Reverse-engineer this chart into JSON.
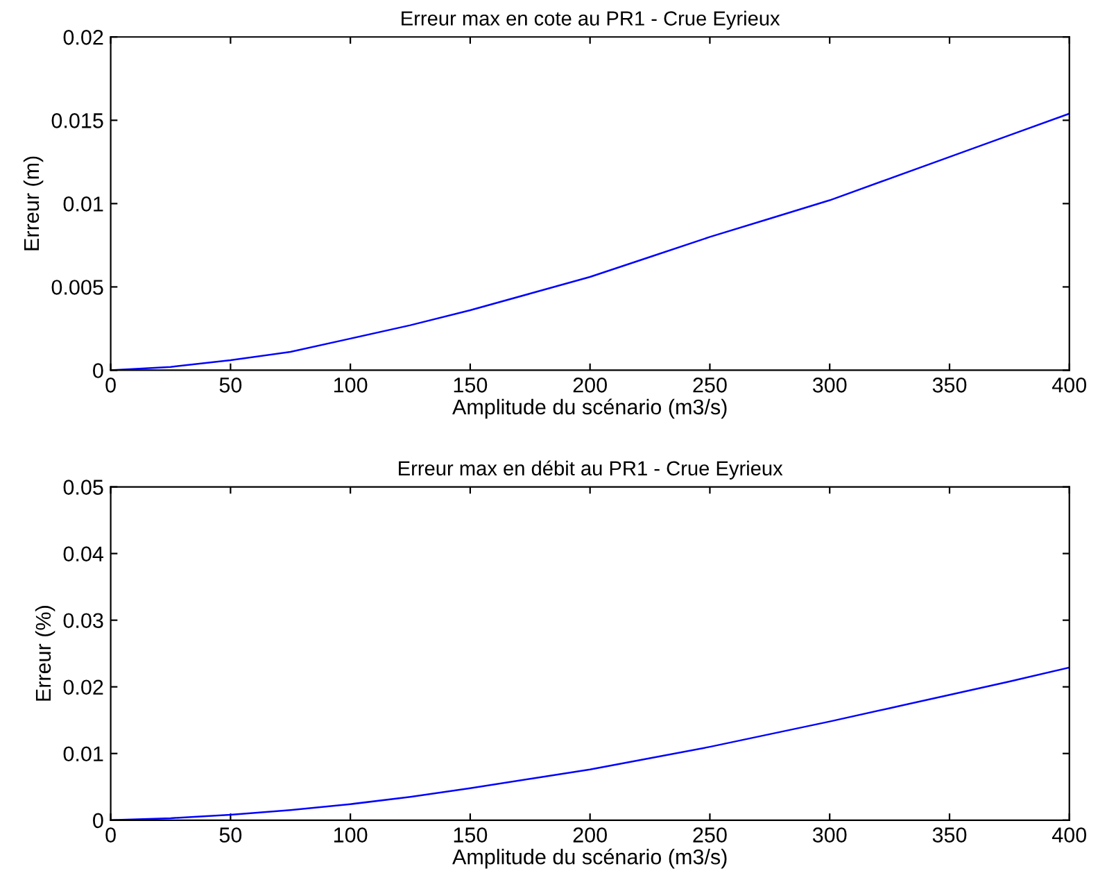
{
  "chart_data": [
    {
      "type": "line",
      "title": "Erreur max en cote au PR1 - Crue Eyrieux",
      "xlabel": "Amplitude du scénario (m3/s)",
      "ylabel": "Erreur (m)",
      "x": [
        0,
        25,
        50,
        75,
        100,
        125,
        150,
        175,
        200,
        225,
        250,
        275,
        300,
        325,
        350,
        375,
        400
      ],
      "series": [
        {
          "color": "#0000ff",
          "values": [
            0,
            0.0002,
            0.0006,
            0.0011,
            0.0019,
            0.0027,
            0.0036,
            0.0046,
            0.0056,
            0.0068,
            0.008,
            0.0091,
            0.0102,
            0.0115,
            0.0128,
            0.0141,
            0.0154
          ]
        }
      ],
      "xlim": [
        0,
        400
      ],
      "xticks": [
        0,
        50,
        100,
        150,
        200,
        250,
        300,
        350,
        400
      ],
      "ylim": [
        0,
        0.02
      ],
      "yticks": [
        0,
        0.005,
        0.01,
        0.015,
        0.02
      ],
      "grid": false,
      "legend": false
    },
    {
      "type": "line",
      "title": "Erreur max en débit au PR1 - Crue Eyrieux",
      "xlabel": "Amplitude du scénario (m3/s)",
      "ylabel": "Erreur (%)",
      "x": [
        0,
        25,
        50,
        75,
        100,
        125,
        150,
        175,
        200,
        225,
        250,
        275,
        300,
        325,
        350,
        375,
        400
      ],
      "series": [
        {
          "color": "#0000ff",
          "values": [
            0,
            0.0003,
            0.0008,
            0.0015,
            0.0024,
            0.0035,
            0.0048,
            0.0062,
            0.0076,
            0.0093,
            0.011,
            0.0129,
            0.0148,
            0.0168,
            0.0188,
            0.0208,
            0.0229
          ]
        }
      ],
      "xlim": [
        0,
        400
      ],
      "xticks": [
        0,
        50,
        100,
        150,
        200,
        250,
        300,
        350,
        400
      ],
      "ylim": [
        0,
        0.05
      ],
      "yticks": [
        0,
        0.01,
        0.02,
        0.03,
        0.04,
        0.05
      ],
      "grid": false,
      "legend": false
    }
  ]
}
